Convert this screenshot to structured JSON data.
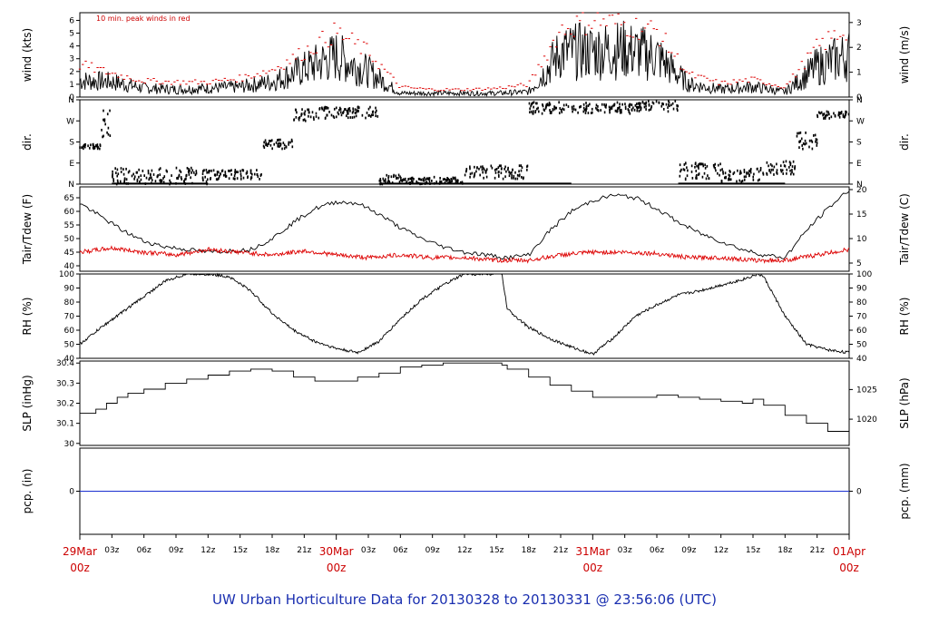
{
  "title": "UW Urban Horticulture Data for 20130328  to  20130331 @ 23:56:06  (UTC)",
  "colors": {
    "primary": "#000000",
    "accent": "#dd0000",
    "zero_line": "#1a2fd0",
    "title": "#1a2fb0",
    "day_label": "#cc0000"
  },
  "time_axis": {
    "hour_ticks": [
      "03z",
      "06z",
      "09z",
      "12z",
      "15z",
      "18z",
      "21z",
      "03z",
      "06z",
      "09z",
      "12z",
      "15z",
      "18z",
      "21z",
      "03z",
      "06z",
      "09z",
      "12z",
      "15z",
      "18z",
      "21z"
    ],
    "hour_values": [
      3,
      6,
      9,
      12,
      15,
      18,
      21,
      27,
      30,
      33,
      36,
      39,
      42,
      45,
      51,
      54,
      57,
      60,
      63,
      66,
      69
    ],
    "day_labels": [
      {
        "date": "29Mar",
        "time": "00z",
        "hour": 0
      },
      {
        "date": "30Mar",
        "time": "00z",
        "hour": 24
      },
      {
        "date": "31Mar",
        "time": "00z",
        "hour": 48
      },
      {
        "date": "01Apr",
        "time": "00z",
        "hour": 72
      }
    ],
    "range_hours": [
      0,
      72
    ]
  },
  "chart_data": [
    {
      "type": "line",
      "id": "wind",
      "ylabel": "wind (kts)",
      "ylabel_right": "wind (m/s)",
      "annotation": "10 min. peak winds in red",
      "ylim": [
        0,
        6.6
      ],
      "yticks": [
        0,
        1,
        2,
        3,
        4,
        5,
        6
      ],
      "yticks_right": [
        0,
        1,
        2,
        3
      ],
      "right_factor": 0.5144,
      "series": [
        {
          "values_x": [
            0,
            3,
            6,
            9,
            12,
            15,
            18,
            21,
            24,
            27,
            30,
            33,
            36,
            39,
            42,
            45,
            48,
            51,
            54,
            57,
            60,
            63,
            66,
            69,
            72
          ],
          "values": [
            1.3,
            1.2,
            0.7,
            0.6,
            0.7,
            0.8,
            1.2,
            2.2,
            3.2,
            2.0,
            0.3,
            0.3,
            0.3,
            0.3,
            0.4,
            3.5,
            3.6,
            3.7,
            3.2,
            1.0,
            0.6,
            0.8,
            0.4,
            2.4,
            3.3
          ]
        },
        {
          "name": "peak",
          "values_x": [
            0,
            3,
            6,
            9,
            12,
            15,
            18,
            21,
            24,
            27,
            30,
            33,
            36,
            39,
            42,
            45,
            48,
            51,
            54,
            57,
            60,
            63,
            66,
            69,
            72
          ],
          "values": [
            2.6,
            1.9,
            1.3,
            1.2,
            1.2,
            1.5,
            2.2,
            3.6,
            5.2,
            3.6,
            0.8,
            0.6,
            0.6,
            0.7,
            1.0,
            5.4,
            6.2,
            5.8,
            5.3,
            1.8,
            1.1,
            1.4,
            0.8,
            4.0,
            5.6
          ]
        }
      ]
    },
    {
      "type": "scatter",
      "id": "dir",
      "ylabel": "dir.",
      "ylabel_right": "dir.",
      "ylim": [
        0,
        360
      ],
      "yticks": [
        0,
        90,
        180,
        270,
        360
      ],
      "ytick_labels": [
        "N",
        "E",
        "S",
        "W",
        "N"
      ],
      "segments": [
        {
          "x": [
            0,
            2
          ],
          "y": [
            150,
            170
          ]
        },
        {
          "x": [
            2,
            3
          ],
          "y": [
            200,
            360
          ]
        },
        {
          "x": [
            3,
            12
          ],
          "y": [
            0,
            70
          ]
        },
        {
          "x": [
            12,
            17
          ],
          "y": [
            20,
            60
          ]
        },
        {
          "x": [
            17,
            20
          ],
          "y": [
            150,
            190
          ]
        },
        {
          "x": [
            20,
            22
          ],
          "y": [
            270,
            320
          ]
        },
        {
          "x": [
            22,
            28
          ],
          "y": [
            280,
            330
          ]
        },
        {
          "x": [
            28,
            30
          ],
          "y": [
            0,
            40
          ]
        },
        {
          "x": [
            30,
            36
          ],
          "y": [
            0,
            30
          ]
        },
        {
          "x": [
            36,
            42
          ],
          "y": [
            20,
            80
          ]
        },
        {
          "x": [
            42,
            52
          ],
          "y": [
            300,
            350
          ]
        },
        {
          "x": [
            52,
            56
          ],
          "y": [
            310,
            355
          ]
        },
        {
          "x": [
            56,
            60
          ],
          "y": [
            20,
            90
          ]
        },
        {
          "x": [
            60,
            64
          ],
          "y": [
            10,
            70
          ]
        },
        {
          "x": [
            64,
            67
          ],
          "y": [
            40,
            100
          ]
        },
        {
          "x": [
            67,
            69
          ],
          "y": [
            150,
            220
          ]
        },
        {
          "x": [
            69,
            72
          ],
          "y": [
            280,
            310
          ]
        }
      ]
    },
    {
      "type": "line",
      "id": "temp",
      "ylabel": "Tair/Tdew (F)",
      "ylabel_right": "Tair/Tdew (C)",
      "ylim": [
        38,
        69
      ],
      "yticks": [
        40,
        45,
        50,
        55,
        60,
        65
      ],
      "yticks_right": [
        5,
        10,
        15,
        20
      ],
      "series": [
        {
          "name": "Tair",
          "values_x": [
            0,
            2,
            4,
            6,
            8,
            10,
            12,
            14,
            16,
            18,
            20,
            22,
            24,
            26,
            28,
            30,
            32,
            34,
            36,
            38,
            40,
            42,
            44,
            46,
            48,
            50,
            52,
            54,
            56,
            58,
            60,
            62,
            64,
            66,
            68,
            70,
            72
          ],
          "values": [
            63,
            58,
            53,
            49,
            47,
            46,
            45,
            45.5,
            46,
            50,
            56,
            61,
            63.5,
            63,
            59,
            54,
            50,
            47,
            45,
            44,
            43,
            44,
            53,
            60,
            64,
            66,
            65,
            61,
            56,
            52,
            49,
            46,
            44,
            43,
            53,
            61,
            68
          ]
        },
        {
          "name": "Tdew",
          "values_x": [
            0,
            3,
            6,
            9,
            12,
            15,
            18,
            21,
            24,
            27,
            30,
            33,
            36,
            39,
            42,
            45,
            48,
            51,
            54,
            57,
            60,
            63,
            66,
            69,
            72
          ],
          "values": [
            45,
            46.5,
            45,
            44,
            46,
            45,
            44,
            45.5,
            44,
            43,
            44,
            43,
            43,
            42,
            42,
            44,
            45,
            45,
            44.5,
            43,
            43,
            42,
            42,
            44,
            46
          ]
        }
      ]
    },
    {
      "type": "line",
      "id": "rh",
      "ylabel": "RH (%)",
      "ylabel_right": "RH (%)",
      "ylim": [
        40,
        100
      ],
      "yticks": [
        40,
        50,
        60,
        70,
        80,
        90,
        100
      ],
      "yticks_right": [
        40,
        50,
        60,
        70,
        80,
        90,
        100
      ],
      "series": [
        {
          "values_x": [
            0,
            2,
            4,
            6,
            8,
            10,
            12,
            14,
            16,
            18,
            20,
            22,
            24,
            26,
            28,
            30,
            32,
            34,
            36,
            38,
            39.5,
            40,
            42,
            44,
            46,
            48,
            50,
            52,
            54,
            56,
            58,
            60,
            62,
            63.5,
            64,
            66,
            68,
            70,
            72
          ],
          "values": [
            50,
            62,
            73,
            84,
            95,
            100,
            100,
            98,
            88,
            72,
            60,
            52,
            47,
            44,
            52,
            68,
            82,
            92,
            100,
            100,
            100,
            75,
            62,
            54,
            48,
            43,
            55,
            70,
            78,
            85,
            88,
            92,
            96,
            100,
            98,
            70,
            50,
            46,
            44
          ]
        }
      ]
    },
    {
      "type": "line",
      "id": "slp",
      "ylabel": "SLP (inHg)",
      "ylabel_right": "SLP (hPa)",
      "ylim": [
        29.99,
        30.41
      ],
      "yticks": [
        30.0,
        30.1,
        30.2,
        30.3,
        30.4
      ],
      "yticks_right": [
        1020,
        1025,
        1030
      ],
      "series": [
        {
          "values_x": [
            0,
            1.5,
            2.5,
            3.5,
            4.5,
            6,
            8,
            10,
            12,
            14,
            16,
            18,
            20,
            22,
            24,
            26,
            28,
            30,
            32,
            34,
            36,
            38,
            39.5,
            40,
            42,
            44,
            46,
            48,
            50,
            52,
            54,
            56,
            58,
            60,
            62,
            63,
            64,
            66,
            68,
            70,
            72
          ],
          "values": [
            30.15,
            30.17,
            30.2,
            30.23,
            30.25,
            30.27,
            30.3,
            30.32,
            30.34,
            30.36,
            30.37,
            30.36,
            30.33,
            30.31,
            30.31,
            30.33,
            30.35,
            30.38,
            30.39,
            30.4,
            30.4,
            30.4,
            30.39,
            30.37,
            30.33,
            30.29,
            30.26,
            30.23,
            30.23,
            30.23,
            30.24,
            30.23,
            30.22,
            30.21,
            30.2,
            30.22,
            30.19,
            30.14,
            30.1,
            30.06,
            30.02
          ]
        }
      ]
    },
    {
      "type": "line",
      "id": "pcp",
      "ylabel": "pcp. (in)",
      "ylabel_right": "pcp. (mm)",
      "ylim": [
        -1,
        1
      ],
      "yticks": [
        0
      ],
      "yticks_right": [
        0
      ],
      "series": [
        {
          "values_x": [
            0,
            72
          ],
          "values": [
            0,
            0
          ]
        }
      ]
    }
  ]
}
